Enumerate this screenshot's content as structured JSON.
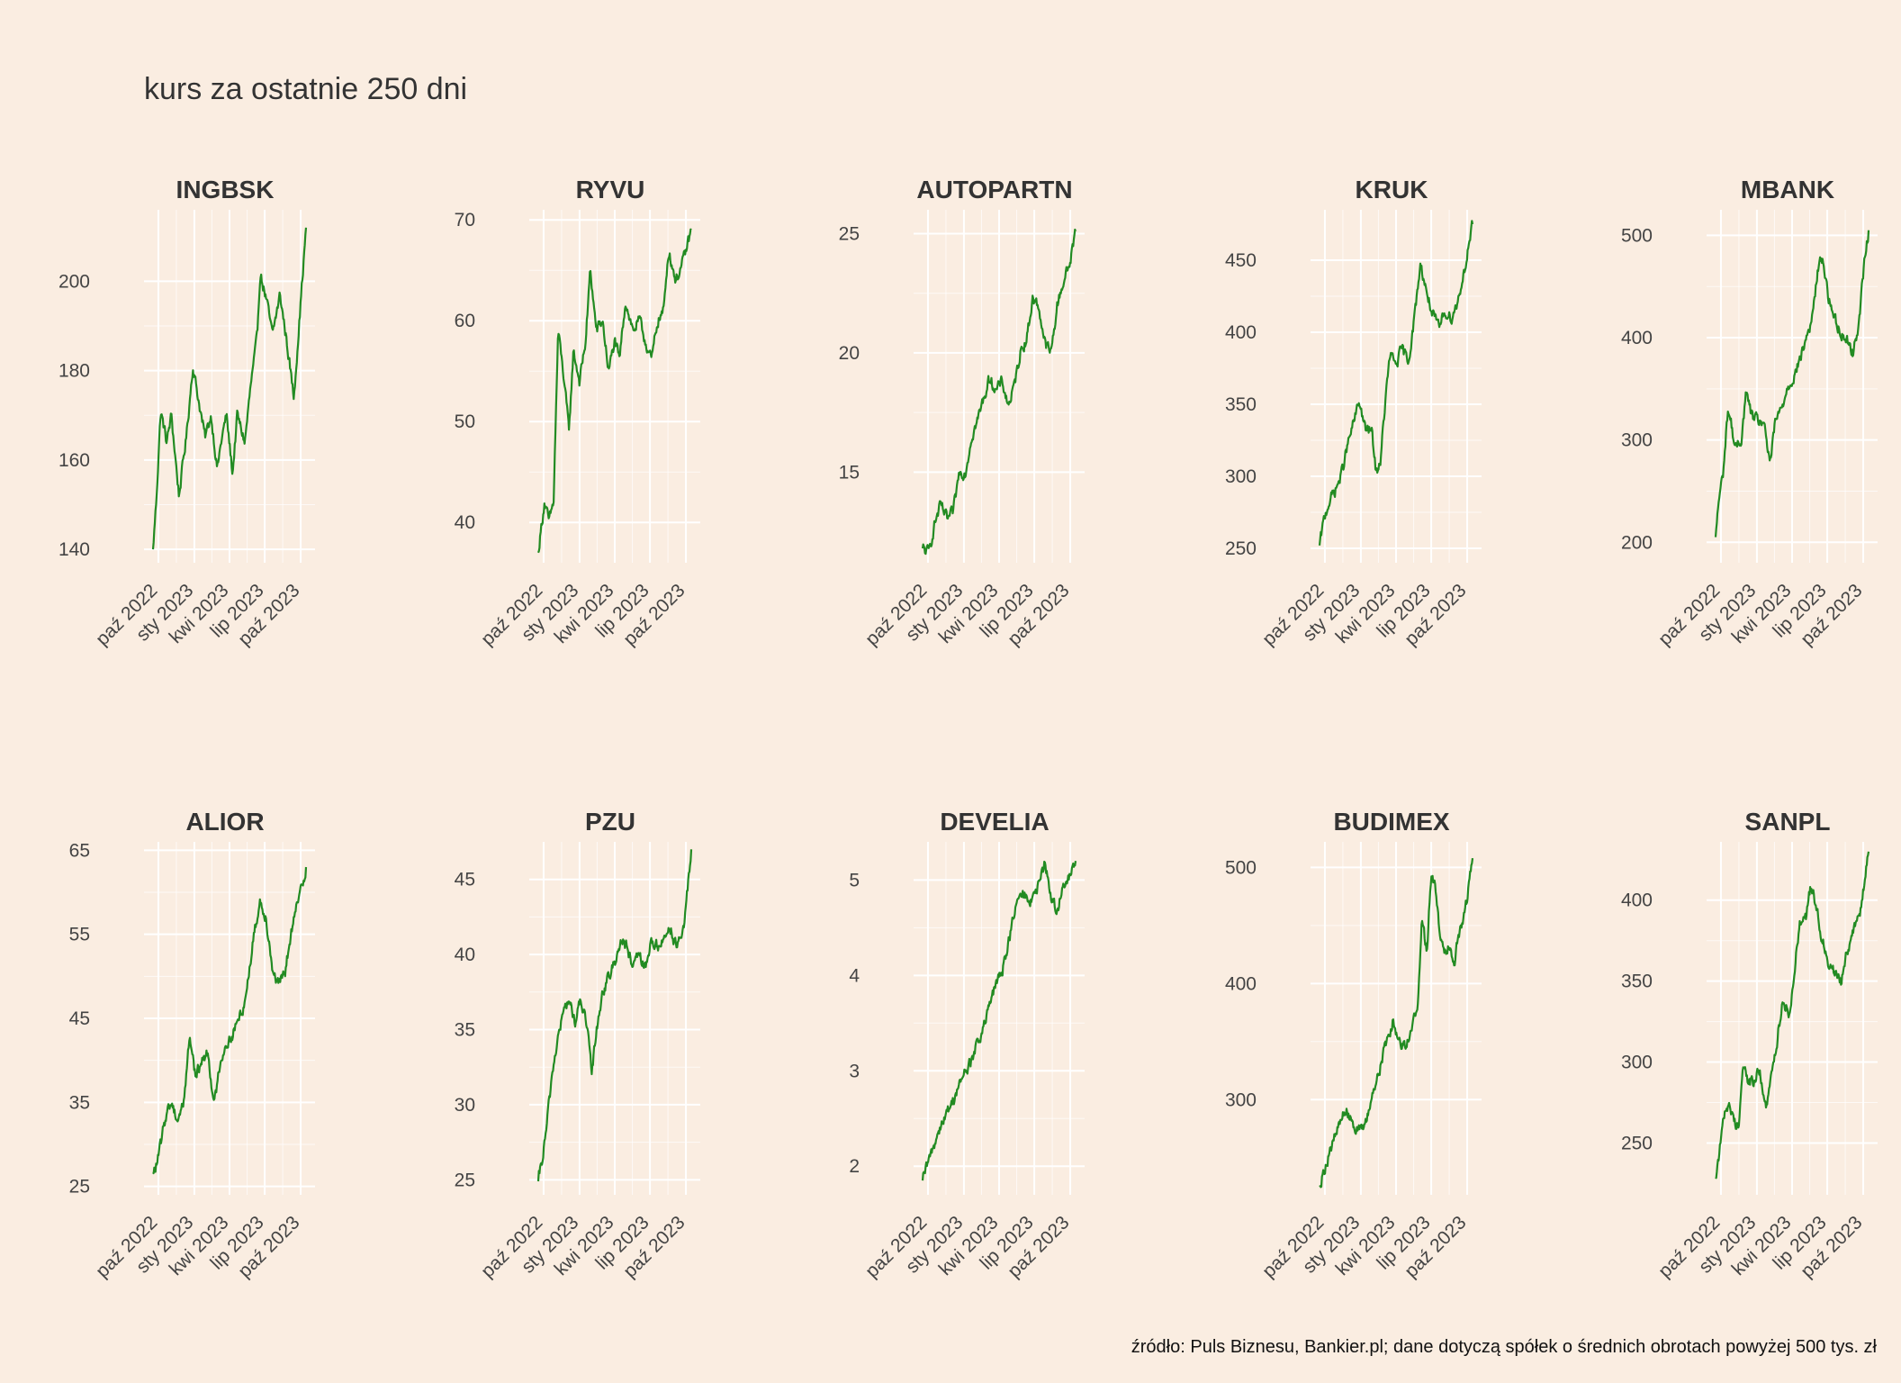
{
  "title": "kurs za ostatnie 250 dni",
  "caption": "źródło: Puls Biznesu, Bankier.pl; dane dotyczą spółek o średnich obrotach powyżej 500 tys. zł",
  "colors": {
    "background": "#FAEDE1",
    "line": "#228B22",
    "grid": "#FFFFFF",
    "text": "#333333"
  },
  "chart_data": [
    {
      "type": "line",
      "title": "INGBSK",
      "x_ticks": [
        "paź 2022",
        "sty 2023",
        "kwi 2023",
        "lip 2023",
        "paź 2023"
      ],
      "y_ticks": [
        140,
        160,
        180,
        200
      ],
      "ylim": [
        137,
        216
      ],
      "keypoints": [
        [
          0,
          140
        ],
        [
          0.02,
          150
        ],
        [
          0.05,
          171
        ],
        [
          0.09,
          164
        ],
        [
          0.12,
          170
        ],
        [
          0.17,
          152
        ],
        [
          0.22,
          166
        ],
        [
          0.26,
          181
        ],
        [
          0.3,
          173
        ],
        [
          0.34,
          165
        ],
        [
          0.38,
          170
        ],
        [
          0.42,
          158
        ],
        [
          0.45,
          165
        ],
        [
          0.48,
          170
        ],
        [
          0.52,
          157
        ],
        [
          0.55,
          170
        ],
        [
          0.6,
          164
        ],
        [
          0.64,
          177
        ],
        [
          0.68,
          187
        ],
        [
          0.7,
          202
        ],
        [
          0.74,
          196
        ],
        [
          0.78,
          188
        ],
        [
          0.83,
          197
        ],
        [
          0.88,
          185
        ],
        [
          0.92,
          174
        ],
        [
          0.96,
          193
        ],
        [
          1.0,
          212
        ]
      ]
    },
    {
      "type": "line",
      "title": "RYVU",
      "x_ticks": [
        "paź 2022",
        "sty 2023",
        "kwi 2023",
        "lip 2023",
        "paź 2023"
      ],
      "y_ticks": [
        40,
        50,
        60,
        70
      ],
      "ylim": [
        36,
        71
      ],
      "keypoints": [
        [
          0,
          37
        ],
        [
          0.04,
          42
        ],
        [
          0.07,
          40
        ],
        [
          0.1,
          42
        ],
        [
          0.13,
          59
        ],
        [
          0.17,
          54
        ],
        [
          0.2,
          49
        ],
        [
          0.23,
          57
        ],
        [
          0.27,
          54
        ],
        [
          0.31,
          58
        ],
        [
          0.34,
          65
        ],
        [
          0.38,
          59
        ],
        [
          0.42,
          60
        ],
        [
          0.46,
          55
        ],
        [
          0.5,
          58
        ],
        [
          0.53,
          56
        ],
        [
          0.57,
          62
        ],
        [
          0.62,
          59
        ],
        [
          0.66,
          60
        ],
        [
          0.7,
          58
        ],
        [
          0.74,
          56
        ],
        [
          0.78,
          60
        ],
        [
          0.82,
          61
        ],
        [
          0.85,
          67
        ],
        [
          0.9,
          64
        ],
        [
          0.95,
          66
        ],
        [
          1.0,
          69
        ]
      ]
    },
    {
      "type": "line",
      "title": "AUTOPARTN",
      "x_ticks": [
        "paź 2022",
        "sty 2023",
        "kwi 2023",
        "lip 2023",
        "paź 2023"
      ],
      "y_ticks": [
        15,
        20,
        25
      ],
      "ylim": [
        11.2,
        26
      ],
      "keypoints": [
        [
          0,
          11.8
        ],
        [
          0.04,
          11.6
        ],
        [
          0.08,
          12.9
        ],
        [
          0.12,
          13.6
        ],
        [
          0.16,
          13.0
        ],
        [
          0.2,
          13.3
        ],
        [
          0.24,
          15.0
        ],
        [
          0.28,
          15.0
        ],
        [
          0.32,
          16.5
        ],
        [
          0.36,
          17.2
        ],
        [
          0.4,
          18.1
        ],
        [
          0.44,
          19.0
        ],
        [
          0.48,
          18.4
        ],
        [
          0.52,
          18.8
        ],
        [
          0.56,
          17.8
        ],
        [
          0.6,
          18.6
        ],
        [
          0.64,
          20.1
        ],
        [
          0.68,
          20.6
        ],
        [
          0.72,
          22.3
        ],
        [
          0.76,
          21.9
        ],
        [
          0.8,
          20.4
        ],
        [
          0.84,
          20.0
        ],
        [
          0.88,
          22.0
        ],
        [
          0.92,
          23.0
        ],
        [
          0.96,
          23.7
        ],
        [
          1.0,
          25.1
        ]
      ]
    },
    {
      "type": "line",
      "title": "KRUK",
      "x_ticks": [
        "paź 2022",
        "sty 2023",
        "kwi 2023",
        "lip 2023",
        "paź 2023"
      ],
      "y_ticks": [
        250,
        300,
        350,
        400,
        450
      ],
      "ylim": [
        240,
        485
      ],
      "keypoints": [
        [
          0,
          252
        ],
        [
          0.03,
          270
        ],
        [
          0.06,
          282
        ],
        [
          0.1,
          290
        ],
        [
          0.14,
          300
        ],
        [
          0.18,
          320
        ],
        [
          0.22,
          336
        ],
        [
          0.26,
          352
        ],
        [
          0.3,
          332
        ],
        [
          0.34,
          332
        ],
        [
          0.37,
          302
        ],
        [
          0.4,
          312
        ],
        [
          0.43,
          352
        ],
        [
          0.46,
          384
        ],
        [
          0.5,
          378
        ],
        [
          0.54,
          388
        ],
        [
          0.58,
          380
        ],
        [
          0.62,
          410
        ],
        [
          0.66,
          448
        ],
        [
          0.7,
          428
        ],
        [
          0.74,
          412
        ],
        [
          0.78,
          402
        ],
        [
          0.82,
          415
        ],
        [
          0.86,
          410
        ],
        [
          0.9,
          420
        ],
        [
          0.95,
          445
        ],
        [
          1.0,
          475
        ]
      ]
    },
    {
      "type": "line",
      "title": "MBANK",
      "x_ticks": [
        "paź 2022",
        "sty 2023",
        "kwi 2023",
        "lip 2023",
        "paź 2023"
      ],
      "y_ticks": [
        200,
        300,
        400,
        500
      ],
      "ylim": [
        180,
        525
      ],
      "keypoints": [
        [
          0,
          205
        ],
        [
          0.02,
          240
        ],
        [
          0.05,
          268
        ],
        [
          0.08,
          330
        ],
        [
          0.1,
          318
        ],
        [
          0.13,
          290
        ],
        [
          0.17,
          302
        ],
        [
          0.2,
          348
        ],
        [
          0.23,
          326
        ],
        [
          0.27,
          318
        ],
        [
          0.31,
          318
        ],
        [
          0.34,
          292
        ],
        [
          0.36,
          278
        ],
        [
          0.39,
          318
        ],
        [
          0.43,
          330
        ],
        [
          0.47,
          352
        ],
        [
          0.51,
          362
        ],
        [
          0.55,
          378
        ],
        [
          0.59,
          398
        ],
        [
          0.63,
          418
        ],
        [
          0.67,
          468
        ],
        [
          0.7,
          478
        ],
        [
          0.74,
          438
        ],
        [
          0.78,
          418
        ],
        [
          0.82,
          405
        ],
        [
          0.86,
          398
        ],
        [
          0.9,
          384
        ],
        [
          0.94,
          420
        ],
        [
          0.97,
          470
        ],
        [
          1.0,
          505
        ]
      ]
    },
    {
      "type": "line",
      "title": "ALIOR",
      "x_ticks": [
        "paź 2022",
        "sty 2023",
        "kwi 2023",
        "lip 2023",
        "paź 2023"
      ],
      "y_ticks": [
        25,
        35,
        45,
        55,
        65
      ],
      "ylim": [
        24,
        66
      ],
      "keypoints": [
        [
          0,
          26.5
        ],
        [
          0.03,
          28
        ],
        [
          0.06,
          31
        ],
        [
          0.09,
          34
        ],
        [
          0.12,
          35
        ],
        [
          0.16,
          33
        ],
        [
          0.2,
          35
        ],
        [
          0.24,
          43
        ],
        [
          0.28,
          38
        ],
        [
          0.32,
          40
        ],
        [
          0.36,
          41
        ],
        [
          0.4,
          34.5
        ],
        [
          0.44,
          40
        ],
        [
          0.48,
          42
        ],
        [
          0.52,
          43
        ],
        [
          0.56,
          45
        ],
        [
          0.6,
          47
        ],
        [
          0.63,
          51
        ],
        [
          0.66,
          55
        ],
        [
          0.7,
          59
        ],
        [
          0.74,
          57
        ],
        [
          0.78,
          51
        ],
        [
          0.82,
          49
        ],
        [
          0.86,
          50
        ],
        [
          0.9,
          55
        ],
        [
          0.95,
          59
        ],
        [
          1.0,
          63
        ]
      ]
    },
    {
      "type": "line",
      "title": "PZU",
      "x_ticks": [
        "paź 2022",
        "sty 2023",
        "kwi 2023",
        "lip 2023",
        "paź 2023"
      ],
      "y_ticks": [
        25,
        30,
        35,
        40,
        45
      ],
      "ylim": [
        24,
        47.5
      ],
      "keypoints": [
        [
          0,
          24.9
        ],
        [
          0.03,
          26.5
        ],
        [
          0.06,
          29
        ],
        [
          0.09,
          32
        ],
        [
          0.12,
          34
        ],
        [
          0.16,
          36
        ],
        [
          0.2,
          37
        ],
        [
          0.24,
          35.5
        ],
        [
          0.28,
          37
        ],
        [
          0.32,
          35
        ],
        [
          0.35,
          32
        ],
        [
          0.38,
          35
        ],
        [
          0.42,
          37.5
        ],
        [
          0.46,
          38.5
        ],
        [
          0.5,
          39.5
        ],
        [
          0.54,
          41
        ],
        [
          0.58,
          40.5
        ],
        [
          0.62,
          39
        ],
        [
          0.66,
          40
        ],
        [
          0.7,
          39
        ],
        [
          0.74,
          41
        ],
        [
          0.78,
          40.5
        ],
        [
          0.82,
          41
        ],
        [
          0.86,
          42
        ],
        [
          0.9,
          40.5
        ],
        [
          0.95,
          41.5
        ],
        [
          1.0,
          47
        ]
      ]
    },
    {
      "type": "line",
      "title": "DEVELIA",
      "x_ticks": [
        "paź 2022",
        "sty 2023",
        "kwi 2023",
        "lip 2023",
        "paź 2023"
      ],
      "y_ticks": [
        2,
        3,
        4,
        5
      ],
      "ylim": [
        1.7,
        5.4
      ],
      "keypoints": [
        [
          0,
          1.85
        ],
        [
          0.04,
          2.05
        ],
        [
          0.08,
          2.25
        ],
        [
          0.12,
          2.45
        ],
        [
          0.16,
          2.55
        ],
        [
          0.2,
          2.7
        ],
        [
          0.24,
          2.85
        ],
        [
          0.28,
          3.0
        ],
        [
          0.32,
          3.1
        ],
        [
          0.36,
          3.3
        ],
        [
          0.4,
          3.45
        ],
        [
          0.44,
          3.7
        ],
        [
          0.48,
          3.9
        ],
        [
          0.52,
          4.05
        ],
        [
          0.56,
          4.35
        ],
        [
          0.6,
          4.65
        ],
        [
          0.64,
          4.85
        ],
        [
          0.68,
          4.82
        ],
        [
          0.72,
          4.78
        ],
        [
          0.76,
          4.95
        ],
        [
          0.8,
          5.18
        ],
        [
          0.84,
          4.82
        ],
        [
          0.88,
          4.68
        ],
        [
          0.92,
          4.92
        ],
        [
          0.96,
          5.02
        ],
        [
          1.0,
          5.2
        ]
      ]
    },
    {
      "type": "line",
      "title": "BUDIMEX",
      "x_ticks": [
        "paź 2022",
        "sty 2023",
        "kwi 2023",
        "lip 2023",
        "paź 2023"
      ],
      "y_ticks": [
        300,
        400,
        500
      ],
      "ylim": [
        218,
        522
      ],
      "keypoints": [
        [
          0,
          225
        ],
        [
          0.04,
          245
        ],
        [
          0.08,
          260
        ],
        [
          0.12,
          275
        ],
        [
          0.16,
          290
        ],
        [
          0.2,
          287
        ],
        [
          0.24,
          275
        ],
        [
          0.28,
          272
        ],
        [
          0.32,
          290
        ],
        [
          0.36,
          312
        ],
        [
          0.4,
          330
        ],
        [
          0.44,
          352
        ],
        [
          0.48,
          368
        ],
        [
          0.52,
          350
        ],
        [
          0.56,
          348
        ],
        [
          0.6,
          358
        ],
        [
          0.64,
          382
        ],
        [
          0.67,
          455
        ],
        [
          0.7,
          428
        ],
        [
          0.73,
          495
        ],
        [
          0.76,
          480
        ],
        [
          0.79,
          440
        ],
        [
          0.82,
          428
        ],
        [
          0.85,
          435
        ],
        [
          0.88,
          420
        ],
        [
          0.92,
          448
        ],
        [
          0.96,
          470
        ],
        [
          1.0,
          508
        ]
      ]
    },
    {
      "type": "line",
      "title": "SANPL",
      "x_ticks": [
        "paź 2022",
        "sty 2023",
        "kwi 2023",
        "lip 2023",
        "paź 2023"
      ],
      "y_ticks": [
        250,
        300,
        350,
        400
      ],
      "ylim": [
        218,
        436
      ],
      "keypoints": [
        [
          0,
          228
        ],
        [
          0.03,
          248
        ],
        [
          0.06,
          270
        ],
        [
          0.09,
          275
        ],
        [
          0.12,
          262
        ],
        [
          0.15,
          262
        ],
        [
          0.18,
          298
        ],
        [
          0.21,
          288
        ],
        [
          0.25,
          288
        ],
        [
          0.29,
          295
        ],
        [
          0.33,
          270
        ],
        [
          0.36,
          288
        ],
        [
          0.4,
          312
        ],
        [
          0.44,
          340
        ],
        [
          0.48,
          330
        ],
        [
          0.51,
          350
        ],
        [
          0.55,
          388
        ],
        [
          0.59,
          390
        ],
        [
          0.62,
          408
        ],
        [
          0.66,
          395
        ],
        [
          0.7,
          375
        ],
        [
          0.74,
          362
        ],
        [
          0.78,
          355
        ],
        [
          0.82,
          350
        ],
        [
          0.86,
          370
        ],
        [
          0.9,
          380
        ],
        [
          0.95,
          395
        ],
        [
          1.0,
          430
        ]
      ]
    }
  ]
}
